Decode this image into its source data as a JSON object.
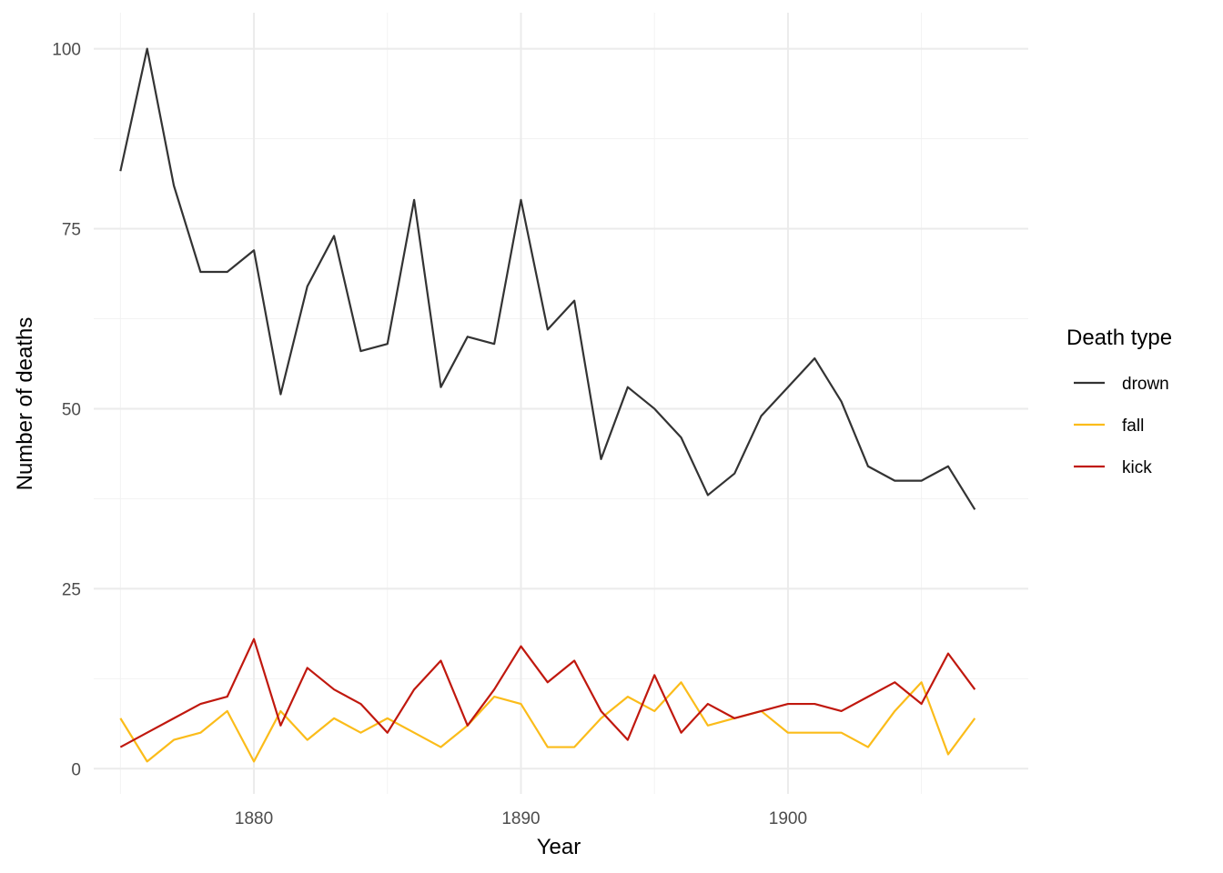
{
  "chart_data": {
    "type": "line",
    "title": "",
    "xlabel": "Year",
    "ylabel": "Number of deaths",
    "x": [
      1875,
      1876,
      1877,
      1878,
      1879,
      1880,
      1881,
      1882,
      1883,
      1884,
      1885,
      1886,
      1887,
      1888,
      1889,
      1890,
      1891,
      1892,
      1893,
      1894,
      1895,
      1896,
      1897,
      1898,
      1899,
      1900,
      1901,
      1902,
      1903,
      1904,
      1905,
      1906,
      1907
    ],
    "xlim": [
      1874,
      1909
    ],
    "ylim": [
      -3.5,
      105
    ],
    "xticks": [
      1880,
      1890,
      1900
    ],
    "xtick_labels": [
      "1880",
      "1890",
      "1900"
    ],
    "yticks": [
      0,
      25,
      50,
      75,
      100
    ],
    "ytick_labels": [
      "0",
      "25",
      "50",
      "75",
      "100"
    ],
    "grid": true,
    "legend": {
      "title": "Death type",
      "placement": "right"
    },
    "series": [
      {
        "name": "drown",
        "color": "#333333",
        "values": [
          83,
          100,
          81,
          69,
          69,
          72,
          52,
          67,
          74,
          58,
          59,
          79,
          53,
          60,
          59,
          79,
          61,
          65,
          43,
          53,
          50,
          46,
          38,
          41,
          49,
          53,
          57,
          51,
          42,
          40,
          40,
          42,
          36
        ]
      },
      {
        "name": "fall",
        "color": "#fbbc1a",
        "values": [
          7,
          1,
          4,
          5,
          8,
          1,
          8,
          4,
          7,
          5,
          7,
          5,
          3,
          6,
          10,
          9,
          3,
          3,
          7,
          10,
          8,
          12,
          6,
          7,
          8,
          5,
          5,
          5,
          3,
          8,
          12,
          2,
          7
        ]
      },
      {
        "name": "kick",
        "color": "#c0180e",
        "values": [
          3,
          5,
          7,
          9,
          10,
          18,
          6,
          14,
          11,
          9,
          5,
          11,
          15,
          6,
          11,
          17,
          12,
          15,
          8,
          4,
          13,
          5,
          9,
          7,
          8,
          9,
          9,
          8,
          10,
          12,
          9,
          16,
          11
        ]
      }
    ]
  }
}
